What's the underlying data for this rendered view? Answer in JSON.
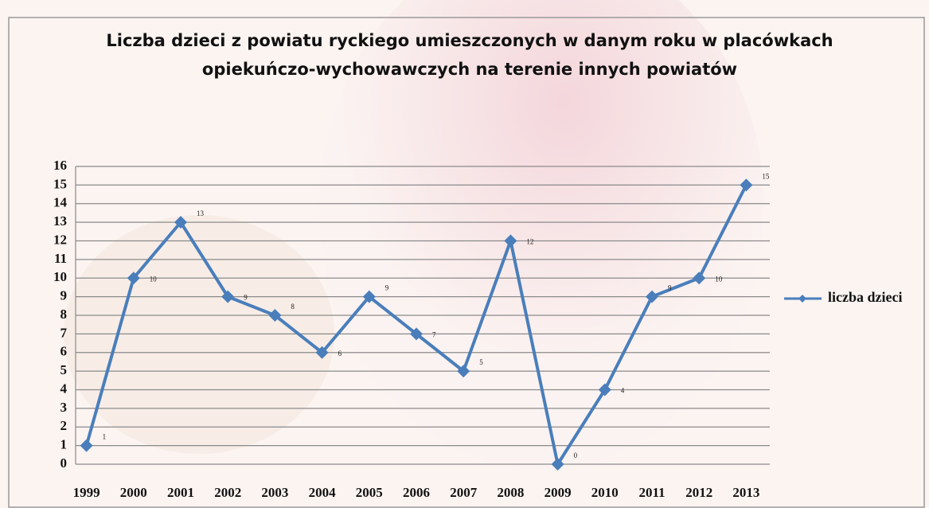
{
  "chart_data": {
    "type": "line",
    "title": [
      "Liczba dzieci z powiatu ryckiego umieszczonych w danym roku w placówkach",
      "opiekuńczo-wychowawczych na terenie innych powiatów"
    ],
    "categories": [
      "1999",
      "2000",
      "2001",
      "2002",
      "2003",
      "2004",
      "2005",
      "2006",
      "2007",
      "2008",
      "2009",
      "2010",
      "2011",
      "2012",
      "2013"
    ],
    "series": [
      {
        "name": "liczba dzieci",
        "color": "#4a7ebb",
        "values": [
          1,
          10,
          13,
          9,
          8,
          6,
          9,
          7,
          5,
          12,
          0,
          4,
          9,
          10,
          15
        ]
      }
    ],
    "ylim": [
      0,
      16
    ],
    "yticks": [
      0,
      1,
      2,
      3,
      4,
      5,
      6,
      7,
      8,
      9,
      10,
      11,
      12,
      13,
      14,
      15,
      16
    ],
    "grid": true,
    "legend": "right",
    "data_labels": true
  }
}
